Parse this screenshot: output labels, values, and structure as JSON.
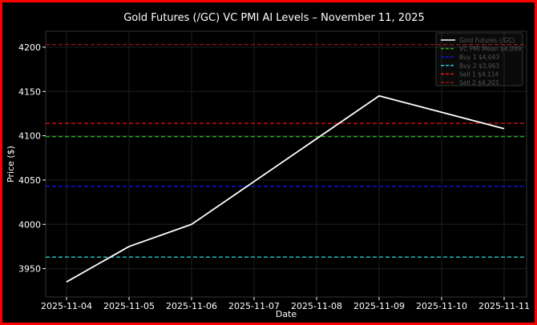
{
  "chart_data": {
    "type": "line",
    "title": "Gold Futures (/GC) VC PMI AI Levels – November 11, 2025",
    "xlabel": "Date",
    "ylabel": "Price ($)",
    "x": [
      "2025-11-04",
      "2025-11-05",
      "2025-11-06",
      "2025-11-07",
      "2025-11-08",
      "2025-11-09",
      "2025-11-10",
      "2025-11-11"
    ],
    "x_tick_labels": [
      "2025-11-04",
      "2025-11-05",
      "2025-11-06",
      "2025-11-07",
      "2025-11-08",
      "2025-11-09",
      "2025-11-10",
      "2025-11-11"
    ],
    "ylim": [
      3918,
      4218
    ],
    "y_ticks": [
      3950,
      4000,
      4050,
      4100,
      4150,
      4200
    ],
    "grid": true,
    "legend_position": "top-right",
    "series": [
      {
        "name": "Gold Futures (/GC)",
        "color": "#ffffff",
        "style": "solid",
        "points": [
          {
            "x": "2025-11-04",
            "y": 3935
          },
          {
            "x": "2025-11-05",
            "y": 3975
          },
          {
            "x": "2025-11-06",
            "y": 4000
          },
          {
            "x": "2025-11-09",
            "y": 4145
          },
          {
            "x": "2025-11-11",
            "y": 4108
          }
        ]
      }
    ],
    "levels": [
      {
        "name": "VC PMI Mean $4,099",
        "value": 4099,
        "color": "#22aa22",
        "style": "dashed"
      },
      {
        "name": "Buy 1 $4,043",
        "value": 4043,
        "color": "#1111ee",
        "style": "dashed"
      },
      {
        "name": "Buy 2 $3,963",
        "value": 3963,
        "color": "#22cccc",
        "style": "dashed"
      },
      {
        "name": "Sell 1 $4,114",
        "value": 4114,
        "color": "#ee1111",
        "style": "dashed"
      },
      {
        "name": "Sell 2 $4,203",
        "value": 4203,
        "color": "#991111",
        "style": "dashed"
      }
    ]
  }
}
